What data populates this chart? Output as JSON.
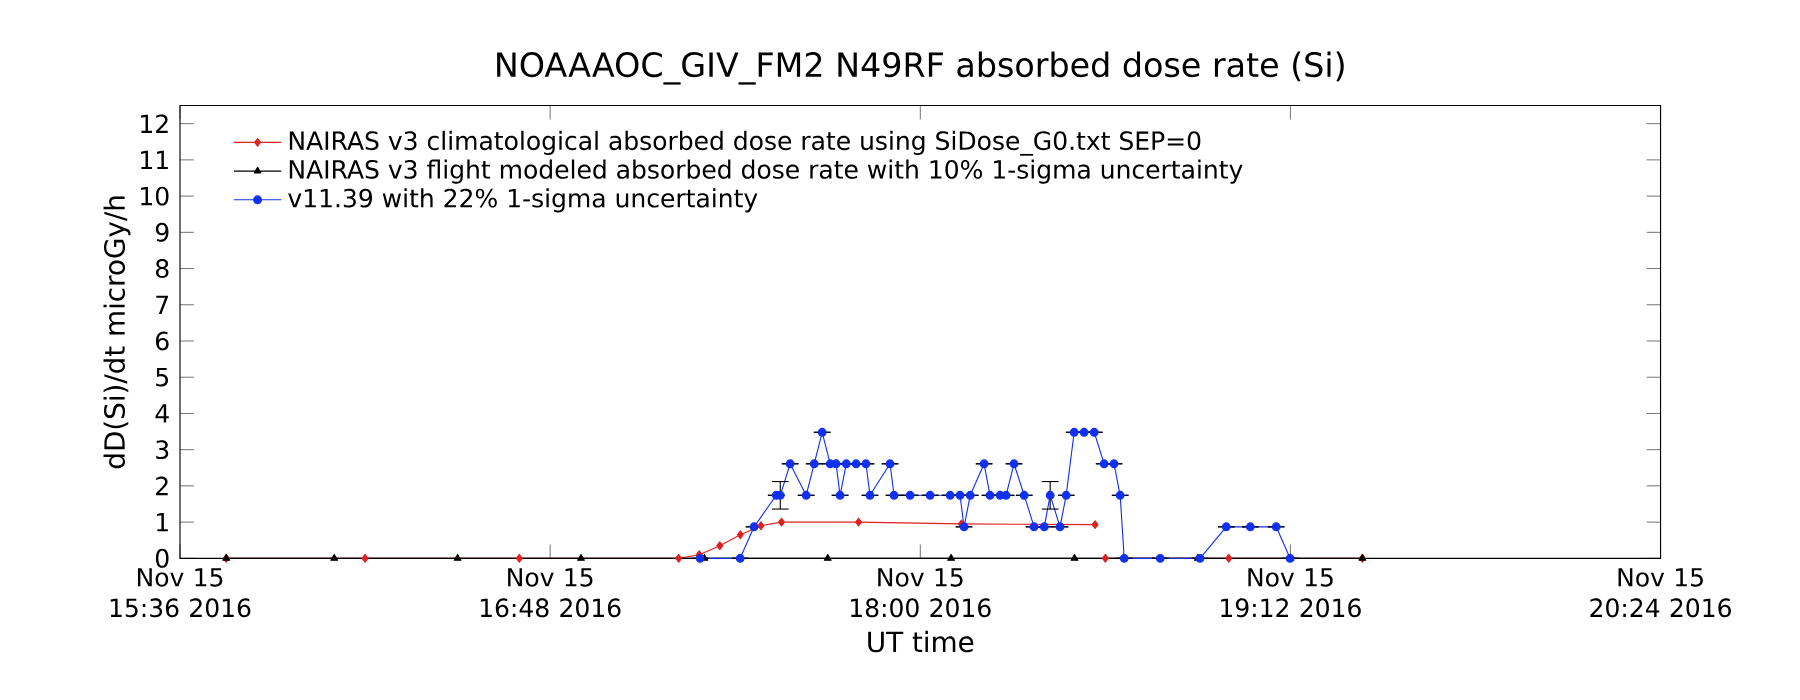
{
  "chart_data": {
    "type": "line",
    "title": "NOAAAOC_GIV_FM2   N49RF  absorbed dose rate (Si)",
    "xlabel": "UT time",
    "ylabel": "dD(Si)/dt microGy/h",
    "xlim": [
      "2016-11-15T15:36",
      "2016-11-15T20:24"
    ],
    "ylim": [
      0,
      12.5
    ],
    "xticks": [
      {
        "value": "2016-11-15T15:36",
        "label": "Nov 15 15:36 2016"
      },
      {
        "value": "2016-11-15T16:48",
        "label": "Nov 15 16:48 2016"
      },
      {
        "value": "2016-11-15T18:00",
        "label": "Nov 15 18:00 2016"
      },
      {
        "value": "2016-11-15T19:12",
        "label": "Nov 15 19:12 2016"
      },
      {
        "value": "2016-11-15T20:24",
        "label": "Nov 15 20:24 2016"
      }
    ],
    "yticks": [
      0,
      1,
      2,
      3,
      4,
      5,
      6,
      7,
      8,
      9,
      10,
      11,
      12
    ],
    "legend": "top left",
    "grid": false,
    "series": [
      {
        "name": "NAIRAS v3 climatological absorbed dose rate using SiDose_G0.txt SEP=0",
        "color": "#e02020",
        "marker": "diamond",
        "x": [
          "2016-11-15T15:45",
          "2016-11-15T16:12",
          "2016-11-15T16:42",
          "2016-11-15T17:13",
          "2016-11-15T17:17",
          "2016-11-15T17:21",
          "2016-11-15T17:25",
          "2016-11-15T17:29",
          "2016-11-15T17:33",
          "2016-11-15T17:48",
          "2016-11-15T18:08",
          "2016-11-15T18:34",
          "2016-11-15T18:35",
          "2016-11-15T18:36",
          "2016-11-15T19:00",
          "2016-11-15T19:26"
        ],
        "values": [
          0,
          0,
          0,
          0,
          0.1,
          0.35,
          0.65,
          0.9,
          1.0,
          1.0,
          0.95,
          0.93,
          null,
          0,
          0,
          0
        ]
      },
      {
        "name": "NAIRAS v3 flight modeled absorbed dose rate with 10% 1-sigma uncertainty",
        "color": "#000000",
        "marker": "triangle",
        "x": [
          "2016-11-15T15:45",
          "2016-11-15T16:06",
          "2016-11-15T16:30",
          "2016-11-15T16:54",
          "2016-11-15T17:18",
          "2016-11-15T17:42",
          "2016-11-15T18:06",
          "2016-11-15T18:30",
          "2016-11-15T18:54",
          "2016-11-15T19:12",
          "2016-11-15T19:26"
        ],
        "values": [
          0,
          0,
          0,
          0,
          0,
          0,
          0,
          0,
          0,
          0,
          0
        ]
      },
      {
        "name": "v11.39 with 22% 1-sigma uncertainty",
        "color": "#1030f0",
        "marker": "circle",
        "x": [
          "2016-11-15T17:17:10",
          "2016-11-15T17:24:58",
          "2016-11-15T17:27:40",
          "2016-11-15T17:31:59",
          "2016-11-15T17:32:46",
          "2016-11-15T17:34:41",
          "2016-11-15T17:37:48",
          "2016-11-15T17:39:22",
          "2016-11-15T17:40:55",
          "2016-11-15T17:42:29",
          "2016-11-15T17:43:37",
          "2016-11-15T17:44:24",
          "2016-11-15T17:45:36",
          "2016-11-15T17:47:31",
          "2016-11-15T17:49:26",
          "2016-11-15T17:50:13",
          "2016-11-15T17:54:07",
          "2016-11-15T17:54:54",
          "2016-11-15T17:58:01",
          "2016-11-15T18:01:55",
          "2016-11-15T18:05:49",
          "2016-11-15T18:07:44",
          "2016-11-15T18:08:31",
          "2016-11-15T18:09:43",
          "2016-11-15T18:12:25",
          "2016-11-15T18:13:34",
          "2016-11-15T18:15:32",
          "2016-11-15T18:16:41",
          "2016-11-15T18:18:14",
          "2016-11-15T18:20:13",
          "2016-11-15T18:22:08",
          "2016-11-15T18:24:07",
          "2016-11-15T18:25:16",
          "2016-11-15T18:27:11",
          "2016-11-15T18:28:23",
          "2016-11-15T18:29:56",
          "2016-11-15T18:31:52",
          "2016-11-15T18:33:50",
          "2016-11-15T18:35:46",
          "2016-11-15T18:37:41",
          "2016-11-15T18:38:53",
          "2016-11-15T18:39:40",
          "2016-11-15T18:46:41",
          "2016-11-15T18:54:25",
          "2016-11-15T18:59:31",
          "2016-11-15T19:04:12",
          "2016-11-15T19:09:14",
          "2016-11-15T19:11:56"
        ],
        "values": [
          0,
          0,
          0.87,
          1.74,
          1.74,
          2.61,
          1.74,
          2.61,
          3.48,
          2.61,
          2.61,
          1.74,
          2.61,
          2.61,
          2.61,
          1.74,
          2.61,
          1.74,
          1.74,
          1.74,
          1.74,
          1.74,
          0.87,
          1.74,
          2.61,
          1.74,
          1.74,
          1.74,
          2.61,
          1.74,
          0.87,
          0.87,
          1.74,
          0.87,
          1.74,
          3.48,
          3.48,
          3.48,
          2.61,
          2.61,
          1.74,
          0,
          0,
          0,
          0.87,
          0.87,
          0.87,
          0
        ],
        "errors": [
          null,
          null,
          null,
          null,
          0.38,
          null,
          null,
          null,
          null,
          null,
          null,
          null,
          null,
          null,
          null,
          null,
          null,
          null,
          null,
          null,
          null,
          null,
          null,
          null,
          null,
          null,
          null,
          null,
          null,
          null,
          null,
          null,
          0.38,
          null,
          null,
          null,
          null,
          null,
          null,
          null,
          null,
          null,
          null,
          null,
          null,
          null,
          null,
          null
        ]
      }
    ]
  }
}
